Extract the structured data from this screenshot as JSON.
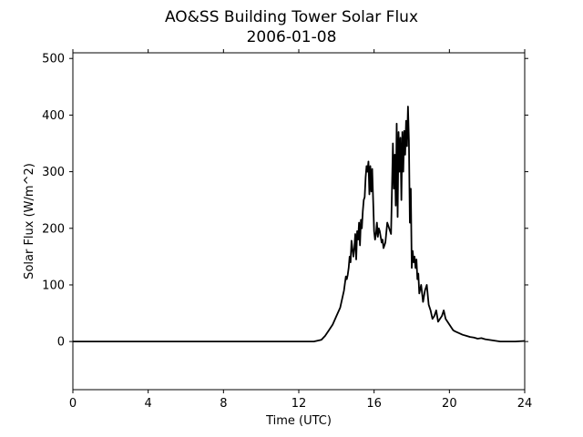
{
  "chart_data": {
    "type": "line",
    "title": "AO&SS Building Tower Solar Flux",
    "subtitle": "2006-01-08",
    "xlabel": "Time (UTC)",
    "ylabel": "Solar Flux (W/m^2)",
    "xlim": [
      0,
      24
    ],
    "ylim": [
      -85,
      510
    ],
    "x_ticks": [
      "0",
      "4",
      "8",
      "12",
      "16",
      "20",
      "24"
    ],
    "y_ticks": [
      "0",
      "100",
      "200",
      "300",
      "400",
      "500"
    ],
    "grid": false,
    "line_color": "#000000",
    "series": [
      {
        "x": [
          0,
          1,
          2,
          3,
          4,
          5,
          6,
          7,
          8,
          9,
          10,
          11,
          12,
          12.8,
          13.2,
          13.4,
          13.6,
          13.8,
          14.0,
          14.2,
          14.4,
          14.5,
          14.55,
          14.6,
          14.65,
          14.7,
          14.75,
          14.8,
          14.9,
          14.95,
          15.0,
          15.05,
          15.1,
          15.15,
          15.2,
          15.25,
          15.3,
          15.35,
          15.4,
          15.45,
          15.5,
          15.55,
          15.6,
          15.65,
          15.7,
          15.75,
          15.8,
          15.85,
          15.9,
          15.95,
          16.0,
          16.05,
          16.1,
          16.15,
          16.2,
          16.25,
          16.3,
          16.35,
          16.4,
          16.45,
          16.5,
          16.6,
          16.7,
          16.8,
          16.9,
          17.0,
          17.05,
          17.1,
          17.15,
          17.2,
          17.25,
          17.3,
          17.35,
          17.4,
          17.45,
          17.5,
          17.55,
          17.6,
          17.65,
          17.7,
          17.75,
          17.8,
          17.85,
          17.9,
          17.95,
          18.0,
          18.05,
          18.1,
          18.15,
          18.2,
          18.25,
          18.3,
          18.35,
          18.4,
          18.5,
          18.6,
          18.7,
          18.8,
          18.9,
          19.0,
          19.1,
          19.2,
          19.3,
          19.4,
          19.5,
          19.6,
          19.7,
          19.8,
          19.9,
          20.0,
          20.1,
          20.2,
          20.3,
          20.5,
          20.7,
          20.9,
          21.1,
          21.3,
          21.5,
          21.7,
          21.9,
          22.1,
          22.3,
          22.5,
          22.7,
          23.0,
          23.5,
          24
        ],
        "y": [
          0,
          0,
          0,
          0,
          0,
          0,
          0,
          0,
          0,
          0,
          0,
          0,
          0,
          0,
          3,
          10,
          20,
          30,
          45,
          60,
          90,
          115,
          110,
          118,
          130,
          150,
          140,
          178,
          150,
          165,
          190,
          145,
          195,
          180,
          210,
          170,
          215,
          200,
          230,
          250,
          255,
          290,
          310,
          300,
          318,
          260,
          310,
          265,
          305,
          250,
          195,
          180,
          190,
          210,
          185,
          200,
          195,
          185,
          175,
          180,
          165,
          175,
          210,
          200,
          190,
          350,
          270,
          330,
          240,
          385,
          220,
          370,
          300,
          360,
          250,
          370,
          300,
          372,
          330,
          390,
          345,
          415,
          355,
          210,
          270,
          130,
          160,
          140,
          150,
          130,
          145,
          110,
          120,
          85,
          100,
          70,
          90,
          100,
          65,
          55,
          40,
          45,
          55,
          35,
          40,
          45,
          55,
          40,
          35,
          30,
          25,
          20,
          18,
          15,
          12,
          10,
          8,
          7,
          5,
          6,
          4,
          3,
          2,
          1,
          0,
          0,
          0,
          1
        ]
      }
    ]
  }
}
